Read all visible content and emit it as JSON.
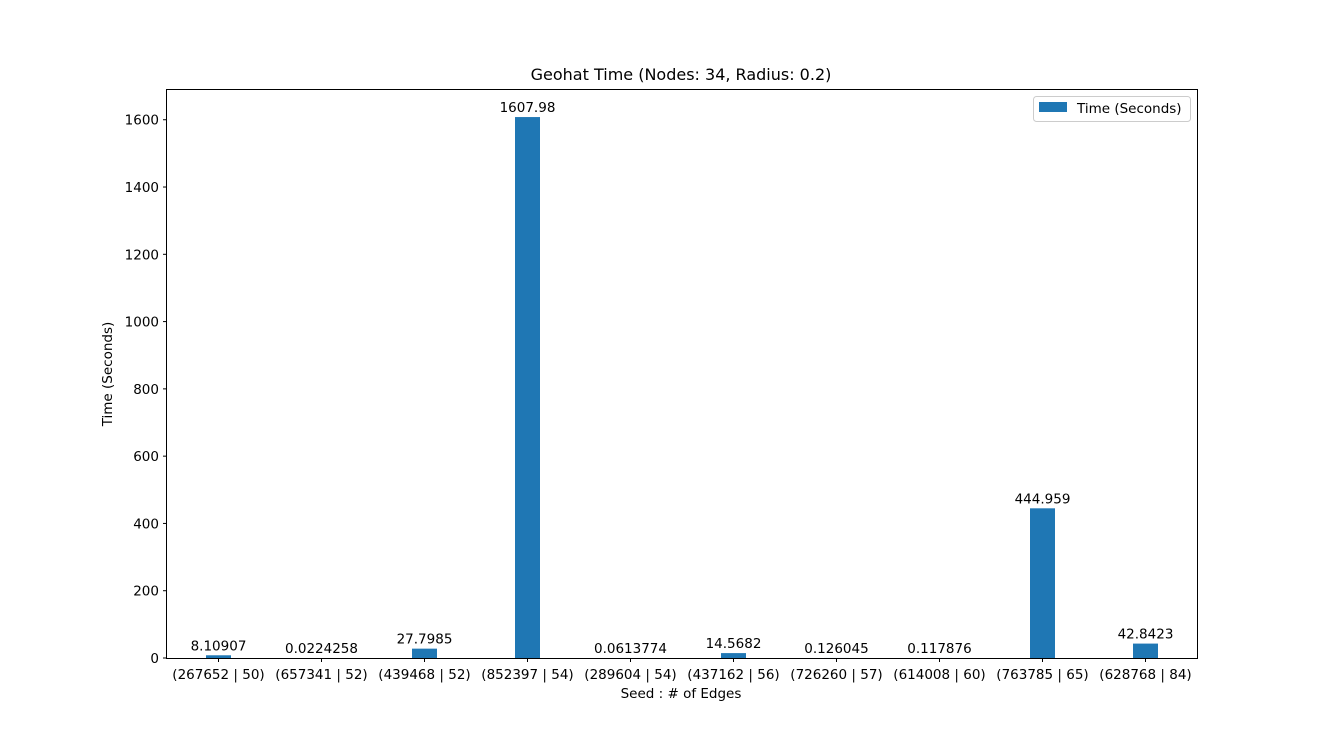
{
  "chart_data": {
    "type": "bar",
    "title": "Geohat Time (Nodes: 34, Radius: 0.2)",
    "xlabel": "Seed : # of Edges",
    "ylabel": "Time (Seconds)",
    "categories": [
      "(267652 | 50)",
      "(657341 | 52)",
      "(439468 | 52)",
      "(852397 | 54)",
      "(289604 | 54)",
      "(437162 | 56)",
      "(726260 | 57)",
      "(614008 | 60)",
      "(763785 | 65)",
      "(628768 | 84)"
    ],
    "series": [
      {
        "name": "Time (Seconds)",
        "color": "#1f77b4",
        "values": [
          8.10907,
          0.0224258,
          27.7985,
          1607.98,
          0.0613774,
          14.5682,
          0.126045,
          0.117876,
          444.959,
          42.8423
        ],
        "labels": [
          "8.10907",
          "0.0224258",
          "27.7985",
          "1607.98",
          "0.0613774",
          "14.5682",
          "0.126045",
          "0.117876",
          "444.959",
          "42.8423"
        ]
      }
    ],
    "ylim": [
      0,
      1688.4
    ],
    "yticks": [
      0,
      200,
      400,
      600,
      800,
      1000,
      1200,
      1400,
      1600
    ],
    "legend": "top-right",
    "grid": false
  }
}
